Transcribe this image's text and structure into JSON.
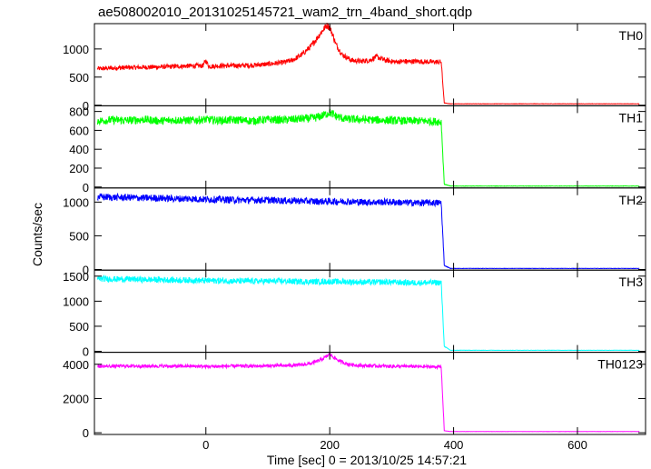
{
  "chart_data": {
    "type": "line",
    "title": "ae508002010_20131025145721_wam2_trn_4band_short.qdp",
    "xlabel": "Time [sec] 0 = 2013/10/25 14:57:21",
    "ylabel": "Counts/sec",
    "xlim": [
      -180,
      710
    ],
    "xticks": [
      0,
      200,
      400,
      600
    ],
    "xtick_labels": [
      "0",
      "200",
      "400",
      "600"
    ],
    "grid": false,
    "panels": [
      {
        "name": "TH0",
        "color": "#ff0000",
        "ylim": [
          -10,
          1450
        ],
        "yticks": [
          0,
          500,
          1000
        ],
        "ytick_labels": [
          "0",
          "500",
          "1000"
        ],
        "series": {
          "x": [
            -175,
            -150,
            -125,
            -100,
            -75,
            -50,
            -25,
            -5,
            0,
            5,
            25,
            50,
            75,
            100,
            125,
            140,
            155,
            170,
            180,
            190,
            195,
            200,
            205,
            210,
            220,
            235,
            250,
            265,
            275,
            290,
            305,
            320,
            340,
            360,
            380,
            385,
            395,
            450,
            500,
            550,
            600,
            650,
            700
          ],
          "y": [
            650,
            660,
            670,
            675,
            680,
            690,
            700,
            700,
            790,
            690,
            700,
            705,
            710,
            730,
            760,
            800,
            900,
            1050,
            1200,
            1350,
            1420,
            1380,
            1250,
            1080,
            900,
            800,
            780,
            800,
            860,
            800,
            770,
            780,
            780,
            770,
            770,
            40,
            25,
            25,
            25,
            25,
            25,
            25,
            25
          ]
        }
      },
      {
        "name": "TH1",
        "color": "#00ff00",
        "ylim": [
          -10,
          860
        ],
        "yticks": [
          0,
          200,
          400,
          600,
          800
        ],
        "ytick_labels": [
          "0",
          "200",
          "400",
          "600",
          "800"
        ],
        "series": {
          "x": [
            -175,
            -150,
            -125,
            -100,
            -75,
            -50,
            -25,
            0,
            25,
            50,
            75,
            100,
            125,
            150,
            175,
            190,
            200,
            210,
            225,
            250,
            275,
            300,
            325,
            350,
            380,
            385,
            395,
            450,
            500,
            550,
            600,
            650,
            700
          ],
          "y": [
            700,
            710,
            705,
            715,
            700,
            710,
            705,
            715,
            705,
            710,
            700,
            715,
            710,
            720,
            730,
            760,
            790,
            750,
            720,
            715,
            710,
            705,
            700,
            700,
            690,
            30,
            10,
            10,
            10,
            10,
            10,
            10,
            10
          ]
        }
      },
      {
        "name": "TH2",
        "color": "#0000ff",
        "ylim": [
          -10,
          1210
        ],
        "yticks": [
          0,
          500,
          1000
        ],
        "ytick_labels": [
          "0",
          "500",
          "1000"
        ],
        "series": {
          "x": [
            -175,
            -150,
            -125,
            -100,
            -75,
            -50,
            -25,
            0,
            25,
            50,
            75,
            100,
            125,
            150,
            175,
            200,
            225,
            250,
            275,
            300,
            325,
            350,
            380,
            385,
            395,
            450,
            500,
            550,
            600,
            650,
            700
          ],
          "y": [
            1080,
            1070,
            1070,
            1060,
            1060,
            1050,
            1050,
            1040,
            1040,
            1030,
            1030,
            1030,
            1020,
            1020,
            1010,
            1010,
            1010,
            1000,
            1000,
            1000,
            990,
            990,
            990,
            60,
            15,
            15,
            15,
            15,
            15,
            15,
            15
          ]
        }
      },
      {
        "name": "TH3",
        "color": "#00ffff",
        "ylim": [
          -20,
          1620
        ],
        "yticks": [
          0,
          500,
          1000,
          1500
        ],
        "ytick_labels": [
          "0",
          "500",
          "1000",
          "1500"
        ],
        "series": {
          "x": [
            -175,
            -150,
            -125,
            -100,
            -75,
            -50,
            -25,
            0,
            25,
            50,
            75,
            100,
            125,
            150,
            175,
            200,
            225,
            250,
            275,
            300,
            325,
            350,
            380,
            385,
            395,
            450,
            500,
            550,
            600,
            650,
            700
          ],
          "y": [
            1450,
            1440,
            1440,
            1430,
            1430,
            1420,
            1420,
            1410,
            1410,
            1400,
            1400,
            1400,
            1400,
            1390,
            1390,
            1390,
            1390,
            1380,
            1380,
            1380,
            1370,
            1370,
            1370,
            100,
            20,
            20,
            20,
            20,
            20,
            20,
            20
          ]
        }
      },
      {
        "name": "TH0123",
        "color": "#ff00ff",
        "ylim": [
          -100,
          4700
        ],
        "yticks": [
          0,
          2000,
          4000
        ],
        "ytick_labels": [
          "0",
          "2000",
          "4000"
        ],
        "series": {
          "x": [
            -175,
            -150,
            -125,
            -100,
            -75,
            -50,
            -25,
            0,
            25,
            50,
            75,
            100,
            125,
            150,
            170,
            185,
            195,
            200,
            205,
            215,
            230,
            250,
            275,
            300,
            325,
            350,
            380,
            385,
            395,
            450,
            500,
            550,
            600,
            650,
            700
          ],
          "y": [
            3880,
            3890,
            3900,
            3890,
            3900,
            3880,
            3890,
            3870,
            3880,
            3900,
            3890,
            3910,
            3920,
            3950,
            4050,
            4250,
            4450,
            4600,
            4450,
            4200,
            4000,
            3920,
            3900,
            3880,
            3880,
            3860,
            3850,
            120,
            70,
            70,
            70,
            70,
            70,
            70,
            70
          ]
        }
      }
    ]
  }
}
